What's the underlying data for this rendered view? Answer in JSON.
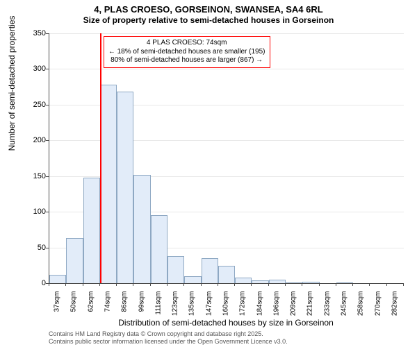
{
  "title_line1": "4, PLAS CROESO, GORSEINON, SWANSEA, SA4 6RL",
  "title_line2": "Size of property relative to semi-detached houses in Gorseinon",
  "ylabel": "Number of semi-detached properties",
  "xlabel": "Distribution of semi-detached houses by size in Gorseinon",
  "footer_line1": "Contains HM Land Registry data © Crown copyright and database right 2025.",
  "footer_line2": "Contains public sector information licensed under the Open Government Licence v3.0.",
  "chart": {
    "type": "histogram",
    "ylim": [
      0,
      350
    ],
    "ytick_step": 50,
    "background_color": "#ffffff",
    "grid_color": "#e8e8e8",
    "axis_color": "#4a4a4a",
    "bar_fill": "#e2ecf9",
    "bar_border": "#8ea8c3",
    "bar_border_width": 1,
    "marker": {
      "x_index": 3,
      "color": "#ff0000",
      "width": 2
    },
    "annotation": {
      "border_color": "#ff0000",
      "line1": "4 PLAS CROESO: 74sqm",
      "line2": "← 18% of semi-detached houses are smaller (195)",
      "line3": "80% of semi-detached houses are larger (867) →",
      "fontsize": 10
    },
    "categories": [
      "37sqm",
      "50sqm",
      "62sqm",
      "74sqm",
      "86sqm",
      "99sqm",
      "111sqm",
      "123sqm",
      "135sqm",
      "147sqm",
      "160sqm",
      "172sqm",
      "184sqm",
      "196sqm",
      "209sqm",
      "221sqm",
      "233sqm",
      "245sqm",
      "258sqm",
      "270sqm",
      "282sqm"
    ],
    "values": [
      12,
      63,
      148,
      278,
      268,
      152,
      95,
      38,
      10,
      35,
      24,
      8,
      4,
      5,
      1,
      2,
      0,
      1,
      0,
      0,
      0
    ],
    "tick_fontsize": 10,
    "label_fontsize": 12,
    "title_fontsize": 13,
    "bar_gap_ratio": 0.0
  }
}
